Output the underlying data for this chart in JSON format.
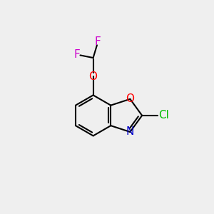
{
  "bg_color": "#efefef",
  "bond_color": "#000000",
  "bond_width": 1.5,
  "atom_colors": {
    "O_ring": "#ff0000",
    "N": "#0000cc",
    "Cl": "#00bb00",
    "F": "#cc00cc",
    "O_ether": "#ff0000"
  },
  "font_size": 11,
  "font_size_Cl": 11
}
